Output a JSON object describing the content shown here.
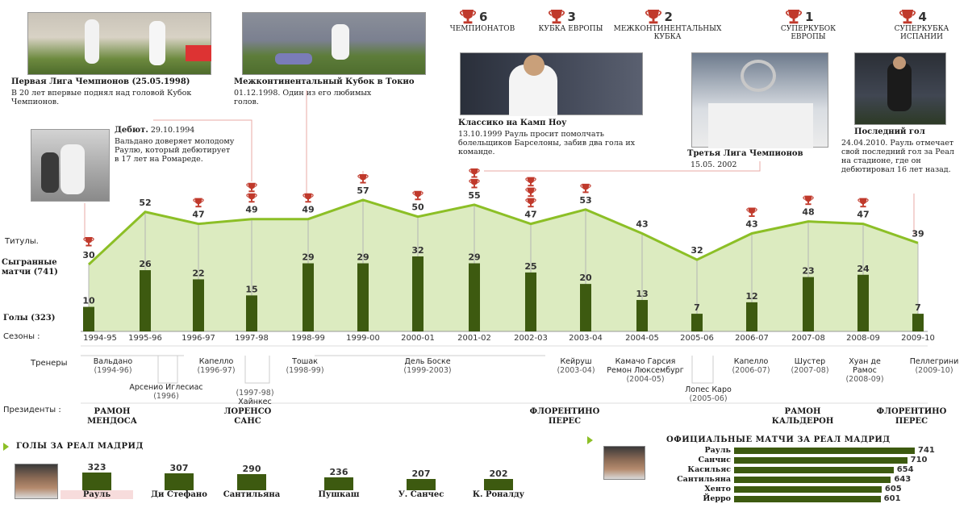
{
  "summary": [
    {
      "num": "6",
      "label": "ЧЕМПИОНАТОВ",
      "icon": "trophy-league-icon"
    },
    {
      "num": "3",
      "label": "КУБКА ЕВРОПЫ",
      "icon": "trophy-europe-icon"
    },
    {
      "num": "2",
      "label": "МЕЖКОНТИНЕНТАЛЬНЫХ КУБКА",
      "icon": "trophy-intercontinental-icon"
    },
    {
      "num": "1",
      "label": "СУПЕРКУБОК ЕВРОПЫ",
      "icon": "trophy-supercup-europe-icon"
    },
    {
      "num": "4",
      "label": "СУПЕРКУБКА ИСПАНИИ",
      "icon": "trophy-supercup-spain-icon"
    }
  ],
  "captions": {
    "first_cl": {
      "title": "Первая Лига Чемпионов (25.05.1998)",
      "text": "В 20 лет впервые поднял над головой Кубок Чемпионов."
    },
    "intercontinental": {
      "title": "Межконтинентальный Кубок в Токио",
      "text": "01.12.1998. Один из его любимых голов."
    },
    "camp_nou": {
      "title": "Классико на Камп Ноу",
      "text": "13.10.1999 Рауль просит помолчать болельщиков Барселоны, забив два гола их команде."
    },
    "third_cl": {
      "title": "Третья Лига Чемпионов",
      "text": "15.05. 2002"
    },
    "last_goal": {
      "title": "Последний гол",
      "text": "24.04.2010. Рауль отмечает свой последний гол за Реал на стадионе, где он дебютировал 16 лет назад."
    },
    "debut": {
      "title": "Дебют.",
      "date": "29.10.1994",
      "text": "Вальдано доверяет молодому Раулю, который дебютирует в 17 лет на Ромареде."
    }
  },
  "row_labels": {
    "titles": "Титулы.",
    "played": "Сыгранные матчи (741)",
    "goals": "Голы (323)",
    "seasons": "Сезоны :",
    "coaches": "Тренеры",
    "presidents": "Президенты :"
  },
  "coaches": [
    {
      "name": "Вальдано",
      "years": "(1994-96)"
    },
    {
      "name": "Арсенио Иглесиас",
      "years": "(1996)"
    },
    {
      "name": "Капелло",
      "years": "(1996-97)"
    },
    {
      "name": "Хайнкес",
      "years": "(1997-98)"
    },
    {
      "name": "Тошак",
      "years": "(1998-99)"
    },
    {
      "name": "Дель Боске",
      "years": "(1999-2003)"
    },
    {
      "name": "Кейруш",
      "years": "(2003-04)"
    },
    {
      "name": "Камачо Гарсия Ремон Люксембург",
      "years": "(2004-05)"
    },
    {
      "name": "Лопес Каро",
      "years": "(2005-06)"
    },
    {
      "name": "Капелло",
      "years": "(2006-07)"
    },
    {
      "name": "Шустер",
      "years": "(2007-08)"
    },
    {
      "name": "Хуан де Рамос",
      "years": "(2008-09)"
    },
    {
      "name": "Пеллегрини",
      "years": "(2009-10)"
    }
  ],
  "presidents": [
    "РАМОН МЕНДОСА",
    "ЛОРЕНСО САНС",
    "ФЛОРЕНТИНО ПЕРЕС",
    "РАМОН КАЛЬДЕРОН",
    "ФЛОРЕНТИНО ПЕРЕС"
  ],
  "chart_data": [
    {
      "type": "area",
      "categories": [
        "1994-95",
        "1995-96",
        "1996-97",
        "1997-98",
        "1998-99",
        "1999-00",
        "2000-01",
        "2001-02",
        "2002-03",
        "2003-04",
        "2004-05",
        "2005-06",
        "2006-07",
        "2007-08",
        "2008-09",
        "2009-10"
      ],
      "series": [
        {
          "name": "Сыгранные матчи (741)",
          "type": "area",
          "values": [
            30,
            52,
            47,
            49,
            49,
            57,
            50,
            55,
            47,
            53,
            43,
            32,
            43,
            48,
            47,
            39
          ],
          "color": "#8cbf26"
        },
        {
          "name": "Голы (323)",
          "type": "bar",
          "values": [
            10,
            26,
            22,
            15,
            29,
            29,
            32,
            29,
            25,
            20,
            13,
            7,
            12,
            23,
            24,
            7
          ],
          "color": "#3d5a10"
        }
      ],
      "titles_per_season": [
        1,
        0,
        1,
        2,
        1,
        1,
        1,
        2,
        3,
        1,
        0,
        0,
        1,
        1,
        1,
        0
      ],
      "ylim": [
        0,
        60
      ]
    },
    {
      "type": "bar",
      "title": "ГОЛЫ ЗА РЕАЛ МАДРИД",
      "categories": [
        "Рауль",
        "Ди Стефано",
        "Сантильяна",
        "Пушкаш",
        "У. Санчес",
        "К. Роналду"
      ],
      "values": [
        323,
        307,
        290,
        236,
        207,
        202
      ],
      "color": "#3d5a10"
    },
    {
      "type": "bar",
      "orientation": "horizontal",
      "title": "ОФИЦИАЛЬНЫЕ МАТЧИ ЗА РЕАЛ МАДРИД",
      "categories": [
        "Рауль",
        "Санчис",
        "Касильяс",
        "Сантильяна",
        "Хенто",
        "Йерро"
      ],
      "values": [
        741,
        710,
        654,
        643,
        605,
        601
      ],
      "color": "#3d5a10"
    }
  ],
  "colors": {
    "accent_green": "#8cbf26",
    "fill_green": "#dcebc0",
    "bar_dark": "#3d5a10",
    "trophy": "#c0392b",
    "leader": "#e8a9a4"
  }
}
